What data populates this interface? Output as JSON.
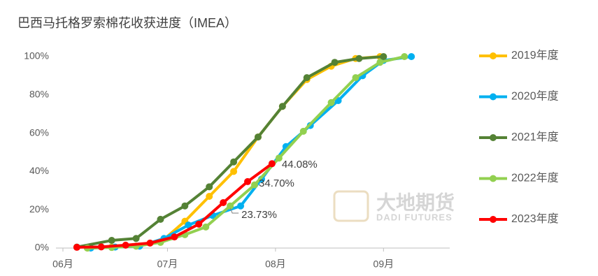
{
  "chart_data": {
    "type": "line",
    "title": "巴西马托格罗索棉花收获进度（IMEA）",
    "watermark": {
      "name": "大地期货",
      "sub": "DADI FUTURES"
    },
    "xlim": [
      150,
      263
    ],
    "xticks": [
      {
        "value": 152,
        "label": "06月"
      },
      {
        "value": 182,
        "label": "07月"
      },
      {
        "value": 213,
        "label": "08月"
      },
      {
        "value": 244,
        "label": "09月"
      }
    ],
    "ylim": [
      0,
      100
    ],
    "yticks": [
      {
        "value": 0,
        "label": "0%"
      },
      {
        "value": 20,
        "label": "20%"
      },
      {
        "value": 40,
        "label": "40%"
      },
      {
        "value": 60,
        "label": "60%"
      },
      {
        "value": 80,
        "label": "80%"
      },
      {
        "value": 100,
        "label": "100%"
      }
    ],
    "grid": false,
    "legend": "right",
    "series": [
      {
        "name": "2019年度",
        "color": "#FFC000",
        "x": [
          159,
          166,
          173,
          180,
          187,
          194,
          201,
          208,
          215,
          222,
          229,
          236,
          243
        ],
        "values": [
          0,
          0.5,
          1,
          3,
          14,
          27,
          40,
          58,
          74,
          88,
          95,
          99,
          100
        ]
      },
      {
        "name": "2020年度",
        "color": "#00B0F0",
        "x": [
          160,
          167,
          174,
          181,
          188,
          195,
          203,
          209,
          216,
          223,
          231,
          238,
          244,
          252
        ],
        "values": [
          0,
          0.5,
          1,
          5,
          12,
          17,
          22,
          36,
          53,
          64,
          77,
          90,
          98,
          100
        ]
      },
      {
        "name": "2021年度",
        "color": "#548235",
        "x": [
          156,
          166,
          173,
          180,
          187,
          194,
          201,
          208,
          215,
          222,
          230,
          237,
          244
        ],
        "values": [
          0.5,
          4,
          5,
          15,
          22,
          32,
          45,
          58,
          74,
          89,
          97,
          99,
          100
        ]
      },
      {
        "name": "2022年度",
        "color": "#92D050",
        "x": [
          159,
          166,
          173,
          180,
          187,
          193,
          200,
          207,
          214,
          221,
          229,
          236,
          243,
          250
        ],
        "values": [
          0,
          0.3,
          1,
          3,
          7,
          11,
          22,
          33,
          47,
          61,
          76,
          89,
          97,
          100
        ]
      },
      {
        "name": "2023年度",
        "color": "#FF0000",
        "x": [
          156,
          163,
          170,
          177,
          184,
          191,
          198,
          205,
          212
        ],
        "values": [
          0.4,
          0.6,
          1.5,
          2.6,
          5.8,
          12.5,
          23.73,
          34.7,
          44.08
        ],
        "value_labels": [
          null,
          null,
          null,
          null,
          null,
          null,
          "23.73%",
          "34.70%",
          "44.08%"
        ]
      }
    ]
  }
}
